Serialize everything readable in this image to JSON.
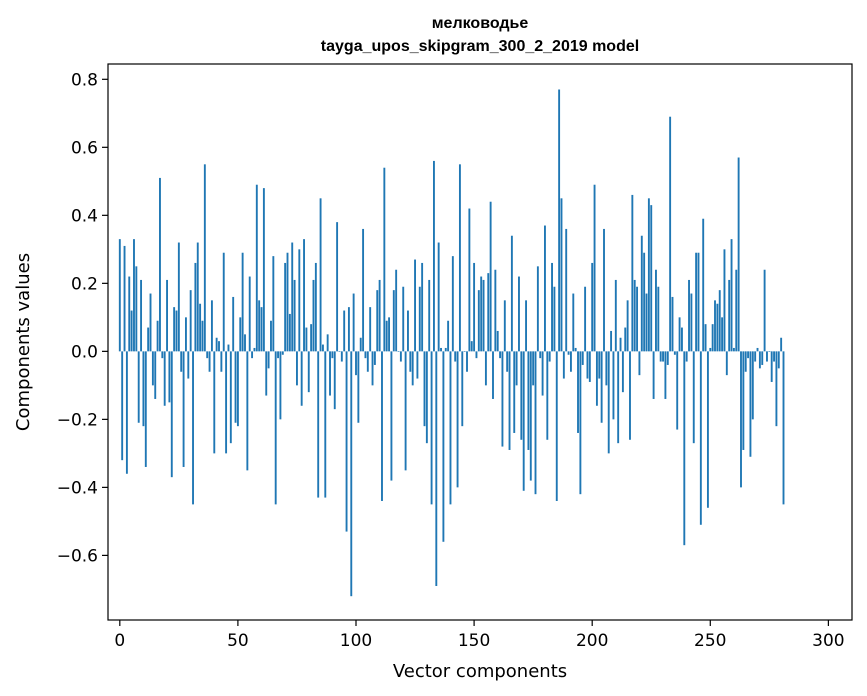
{
  "chart_data": {
    "type": "bar",
    "title": "мелководье",
    "subtitle": "tayga_upos_skipgram_300_2_2019 model",
    "xlabel": "Vector components",
    "ylabel": "Components values",
    "xlim": [
      -5,
      310
    ],
    "ylim": [
      -0.79,
      0.845
    ],
    "xticks": [
      0,
      50,
      100,
      150,
      200,
      250,
      300
    ],
    "yticks": [
      -0.6,
      -0.4,
      -0.2,
      0.0,
      0.2,
      0.4,
      0.6,
      0.8
    ],
    "xtick_labels": [
      "0",
      "50",
      "100",
      "150",
      "200",
      "250",
      "300"
    ],
    "ytick_labels": [
      "−0.6",
      "−0.4",
      "−0.2",
      "0.0",
      "0.2",
      "0.4",
      "0.6",
      "0.8"
    ],
    "bar_color": "#1f77b4",
    "grid": false,
    "values": [
      0.33,
      -0.32,
      0.31,
      -0.36,
      0.22,
      0.12,
      0.33,
      0.25,
      -0.21,
      0.21,
      -0.22,
      -0.34,
      0.07,
      0.17,
      -0.1,
      -0.14,
      0.09,
      0.51,
      -0.02,
      -0.16,
      0.21,
      -0.15,
      -0.37,
      0.13,
      0.12,
      0.32,
      -0.06,
      -0.34,
      0.1,
      -0.08,
      0.18,
      -0.45,
      0.26,
      0.32,
      0.14,
      0.09,
      0.55,
      -0.02,
      -0.06,
      0.15,
      -0.3,
      0.04,
      0.03,
      -0.06,
      0.29,
      -0.3,
      0.02,
      -0.27,
      0.16,
      -0.21,
      -0.22,
      0.1,
      0.29,
      0.05,
      -0.35,
      0.22,
      -0.02,
      0.01,
      0.49,
      0.15,
      0.13,
      0.48,
      -0.13,
      -0.05,
      0.09,
      0.28,
      -0.45,
      -0.02,
      -0.2,
      -0.01,
      0.26,
      0.29,
      0.11,
      0.32,
      0.21,
      -0.1,
      0.3,
      -0.16,
      0.33,
      0.07,
      -0.12,
      0.08,
      0.21,
      0.26,
      -0.43,
      0.45,
      0.02,
      -0.43,
      0.05,
      -0.13,
      -0.02,
      -0.17,
      0.38,
      0.0,
      -0.03,
      0.12,
      -0.53,
      0.13,
      -0.72,
      0.17,
      -0.07,
      -0.21,
      0.04,
      0.36,
      -0.02,
      -0.06,
      0.13,
      -0.1,
      -0.04,
      0.18,
      0.21,
      -0.44,
      0.54,
      0.09,
      0.1,
      -0.38,
      0.18,
      0.24,
      0.0,
      -0.03,
      0.19,
      -0.35,
      0.12,
      -0.06,
      -0.1,
      0.27,
      -0.08,
      0.19,
      0.26,
      -0.22,
      -0.27,
      0.21,
      -0.45,
      0.56,
      -0.69,
      0.32,
      0.01,
      -0.56,
      0.01,
      0.09,
      -0.45,
      0.28,
      -0.03,
      -0.4,
      0.55,
      -0.22,
      0.0,
      -0.06,
      0.42,
      0.03,
      0.26,
      -0.02,
      0.18,
      0.22,
      0.21,
      -0.1,
      0.23,
      0.44,
      -0.14,
      0.24,
      0.06,
      -0.02,
      -0.28,
      0.15,
      -0.06,
      -0.29,
      0.34,
      -0.24,
      -0.1,
      0.22,
      -0.26,
      -0.41,
      0.15,
      -0.29,
      -0.38,
      -0.1,
      -0.42,
      0.25,
      -0.02,
      -0.13,
      0.37,
      -0.26,
      -0.03,
      0.26,
      0.19,
      -0.44,
      0.77,
      0.45,
      -0.08,
      0.36,
      -0.01,
      -0.06,
      0.17,
      0.01,
      -0.24,
      -0.42,
      -0.04,
      0.19,
      -0.08,
      -0.09,
      0.26,
      0.49,
      -0.16,
      -0.08,
      -0.21,
      0.36,
      -0.1,
      -0.3,
      0.06,
      -0.2,
      0.21,
      -0.27,
      0.04,
      -0.12,
      0.07,
      0.15,
      -0.26,
      0.46,
      0.21,
      0.19,
      -0.07,
      0.34,
      0.29,
      0.17,
      0.45,
      0.43,
      -0.14,
      0.24,
      0.19,
      -0.03,
      -0.03,
      -0.14,
      -0.04,
      0.69,
      0.16,
      -0.01,
      -0.23,
      0.1,
      0.07,
      -0.57,
      -0.03,
      0.21,
      0.17,
      -0.27,
      0.29,
      0.29,
      -0.51,
      0.39,
      0.08,
      -0.46,
      0.01,
      0.08,
      0.15,
      0.14,
      0.18,
      0.1,
      0.3,
      -0.07,
      0.21,
      0.33,
      0.01,
      0.24,
      0.57,
      -0.4,
      -0.29,
      -0.06,
      -0.02,
      -0.31,
      -0.2,
      -0.03,
      0.01,
      -0.05,
      -0.04,
      0.24,
      -0.03,
      0.0,
      -0.09,
      -0.03,
      -0.22,
      -0.05,
      0.04,
      -0.45
    ]
  }
}
